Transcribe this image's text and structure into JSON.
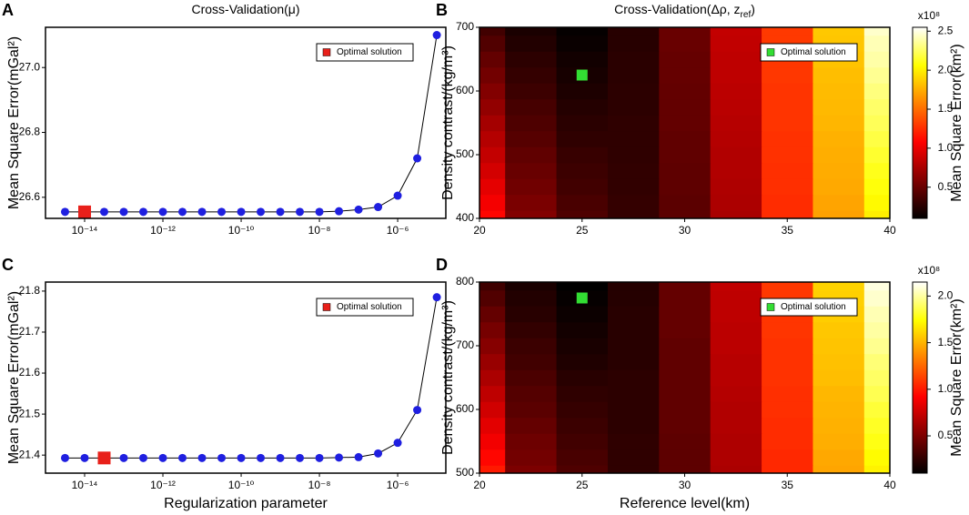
{
  "chart_data": [
    {
      "type": "line",
      "panel": "A",
      "title": [
        "Cross-Validation(μ)"
      ],
      "ylabel": "Mean Square Error(mGal²)",
      "log_x": true,
      "color": "#1f1fe0",
      "line_color": "#000000",
      "x": [
        3.16e-15,
        1e-14,
        3.16e-14,
        1e-13,
        3.16e-13,
        1e-12,
        3.16e-12,
        1e-11,
        3.16e-11,
        1e-10,
        3.16e-10,
        1e-09,
        3.16e-09,
        1e-08,
        3.16e-08,
        1e-07,
        3.16e-07,
        1e-06,
        3.16e-06,
        1e-05
      ],
      "values": [
        26.555,
        26.555,
        26.555,
        26.555,
        26.555,
        26.555,
        26.555,
        26.555,
        26.555,
        26.555,
        26.555,
        26.555,
        26.555,
        26.555,
        26.557,
        26.562,
        26.57,
        26.605,
        26.72,
        27.1
      ],
      "optimal": {
        "name": "Optimal solution",
        "color": "#e8201a",
        "x": 1e-14,
        "y": 26.555
      },
      "legend": "upper right",
      "xlim": [
        1e-15,
        1.7e-05
      ],
      "xticks": [
        {
          "value": 1e-14,
          "label": "10⁻¹⁴"
        },
        {
          "value": 1e-12,
          "label": "10⁻¹²"
        },
        {
          "value": 1e-10,
          "label": "10⁻¹⁰"
        },
        {
          "value": 1e-08,
          "label": "10⁻⁸"
        },
        {
          "value": 1e-06,
          "label": "10⁻⁶"
        }
      ],
      "ylim": [
        26.535,
        27.124
      ],
      "yticks": [
        26.6,
        26.8,
        {
          "value": 27,
          "label": "27.0"
        }
      ]
    },
    {
      "type": "heatmap",
      "panel": "B",
      "title": [
        "Cross-Validation(Δρ, z",
        "ref",
        ")"
      ],
      "ylabel": "Density contrast/(kg/m³)",
      "colormap": "hot",
      "x": [
        20,
        22.5,
        25,
        27.5,
        30,
        32.5,
        35,
        37.5,
        40
      ],
      "y": [
        400,
        425,
        450,
        475,
        500,
        525,
        550,
        575,
        600,
        625,
        650,
        675,
        700
      ],
      "z": [
        [
          1.1,
          0.6,
          0.4,
          0.3,
          0.45,
          0.75,
          1.25,
          1.7,
          2.0
        ],
        [
          1.04,
          0.57,
          0.38,
          0.3,
          0.45,
          0.76,
          1.25,
          1.71,
          2.04
        ],
        [
          0.98,
          0.53,
          0.35,
          0.29,
          0.46,
          0.77,
          1.26,
          1.73,
          2.08
        ],
        [
          0.91,
          0.5,
          0.33,
          0.29,
          0.46,
          0.78,
          1.26,
          1.74,
          2.11
        ],
        [
          0.85,
          0.47,
          0.31,
          0.28,
          0.47,
          0.78,
          1.27,
          1.75,
          2.15
        ],
        [
          0.79,
          0.43,
          0.28,
          0.28,
          0.47,
          0.79,
          1.27,
          1.76,
          2.19
        ],
        [
          0.73,
          0.4,
          0.26,
          0.28,
          0.48,
          0.8,
          1.28,
          1.78,
          2.23
        ],
        [
          0.66,
          0.37,
          0.24,
          0.27,
          0.48,
          0.81,
          1.28,
          1.79,
          2.26
        ],
        [
          0.6,
          0.33,
          0.21,
          0.27,
          0.48,
          0.82,
          1.28,
          1.8,
          2.3
        ],
        [
          0.54,
          0.3,
          0.19,
          0.26,
          0.49,
          0.83,
          1.29,
          1.81,
          2.34
        ],
        [
          0.48,
          0.27,
          0.17,
          0.26,
          0.49,
          0.83,
          1.29,
          1.83,
          2.38
        ],
        [
          0.41,
          0.23,
          0.14,
          0.25,
          0.5,
          0.84,
          1.3,
          1.84,
          2.41
        ],
        [
          0.35,
          0.2,
          0.12,
          0.25,
          0.5,
          0.85,
          1.3,
          1.85,
          2.45
        ]
      ],
      "optimal": {
        "name": "Optimal solution",
        "color": "#33dd33",
        "x": 25,
        "y": 625
      },
      "legend": "upper right",
      "xlim": [
        20,
        40
      ],
      "xticks": [
        20,
        25,
        30,
        35,
        40
      ],
      "ylim": [
        400,
        700
      ],
      "yticks": [
        400,
        500,
        600,
        700
      ],
      "colorbar": {
        "label": "Mean Square Error(km²)",
        "multiplier": "x10⁸",
        "lim": [
          0.1,
          2.55
        ],
        "ticks": [
          0.5,
          {
            "value": 1,
            "label": "1.0"
          },
          1.5,
          {
            "value": 2,
            "label": "2.0"
          },
          2.5
        ]
      }
    },
    {
      "type": "line",
      "panel": "C",
      "ylabel": "Mean Square Error(mGal²)",
      "xlabel": "Regularization parameter",
      "log_x": true,
      "color": "#1f1fe0",
      "line_color": "#000000",
      "x": [
        3.16e-15,
        1e-14,
        3.16e-14,
        1e-13,
        3.16e-13,
        1e-12,
        3.16e-12,
        1e-11,
        3.16e-11,
        1e-10,
        3.16e-10,
        1e-09,
        3.16e-09,
        1e-08,
        3.16e-08,
        1e-07,
        3.16e-07,
        1e-06,
        3.16e-06,
        1e-05
      ],
      "values": [
        21.393,
        21.393,
        21.393,
        21.393,
        21.393,
        21.393,
        21.393,
        21.393,
        21.393,
        21.393,
        21.393,
        21.393,
        21.393,
        21.393,
        21.394,
        21.395,
        21.404,
        21.43,
        21.51,
        21.785
      ],
      "optimal": {
        "name": "Optimal solution",
        "color": "#e8201a",
        "x": 3.16e-14,
        "y": 21.393
      },
      "legend": "upper right",
      "xlim": [
        1e-15,
        1.7e-05
      ],
      "xticks": [
        {
          "value": 1e-14,
          "label": "10⁻¹⁴"
        },
        {
          "value": 1e-12,
          "label": "10⁻¹²"
        },
        {
          "value": 1e-10,
          "label": "10⁻¹⁰"
        },
        {
          "value": 1e-08,
          "label": "10⁻⁸"
        },
        {
          "value": 1e-06,
          "label": "10⁻⁶"
        }
      ],
      "ylim": [
        21.356,
        21.822
      ],
      "yticks": [
        21.4,
        21.5,
        21.6,
        21.7,
        21.8
      ]
    },
    {
      "type": "heatmap",
      "panel": "D",
      "ylabel": "Density contrast/(kg/m³)",
      "xlabel": "Reference level(km)",
      "colormap": "hot",
      "x": [
        20,
        22.5,
        25,
        27.5,
        30,
        32.5,
        35,
        37.5,
        40
      ],
      "y": [
        500,
        525,
        550,
        575,
        600,
        625,
        650,
        675,
        700,
        725,
        750,
        775,
        800
      ],
      "z": [
        [
          1.0,
          0.5,
          0.35,
          0.25,
          0.4,
          0.65,
          1.05,
          1.45,
          1.7
        ],
        [
          0.94,
          0.47,
          0.33,
          0.25,
          0.4,
          0.66,
          1.05,
          1.46,
          1.73
        ],
        [
          0.88,
          0.45,
          0.31,
          0.25,
          0.4,
          0.66,
          1.06,
          1.48,
          1.77
        ],
        [
          0.83,
          0.42,
          0.29,
          0.24,
          0.41,
          0.67,
          1.06,
          1.49,
          1.8
        ],
        [
          0.77,
          0.39,
          0.27,
          0.24,
          0.41,
          0.67,
          1.07,
          1.5,
          1.83
        ],
        [
          0.71,
          0.37,
          0.25,
          0.24,
          0.41,
          0.68,
          1.07,
          1.51,
          1.87
        ],
        [
          0.65,
          0.34,
          0.23,
          0.24,
          0.41,
          0.69,
          1.08,
          1.53,
          1.9
        ],
        [
          0.59,
          0.31,
          0.2,
          0.23,
          0.41,
          0.69,
          1.08,
          1.54,
          1.93
        ],
        [
          0.53,
          0.29,
          0.18,
          0.23,
          0.41,
          0.7,
          1.08,
          1.55,
          1.97
        ],
        [
          0.48,
          0.26,
          0.16,
          0.23,
          0.42,
          0.7,
          1.09,
          1.56,
          2.0
        ],
        [
          0.42,
          0.23,
          0.14,
          0.23,
          0.42,
          0.71,
          1.09,
          1.58,
          2.03
        ],
        [
          0.36,
          0.21,
          0.12,
          0.22,
          0.42,
          0.71,
          1.1,
          1.59,
          2.07
        ],
        [
          0.3,
          0.18,
          0.1,
          0.22,
          0.42,
          0.72,
          1.1,
          1.6,
          2.1
        ]
      ],
      "optimal": {
        "name": "Optimal solution",
        "color": "#33dd33",
        "x": 25,
        "y": 775
      },
      "legend": "upper right",
      "xlim": [
        20,
        40
      ],
      "xticks": [
        20,
        25,
        30,
        35,
        40
      ],
      "ylim": [
        500,
        800
      ],
      "yticks": [
        500,
        600,
        700,
        800
      ],
      "colorbar": {
        "label": "Mean Square Error(km²)",
        "multiplier": "x10⁸",
        "lim": [
          0.1,
          2.15
        ],
        "ticks": [
          0.5,
          {
            "value": 1,
            "label": "1.0"
          },
          1.5,
          {
            "value": 2,
            "label": "2.0"
          }
        ]
      }
    }
  ]
}
